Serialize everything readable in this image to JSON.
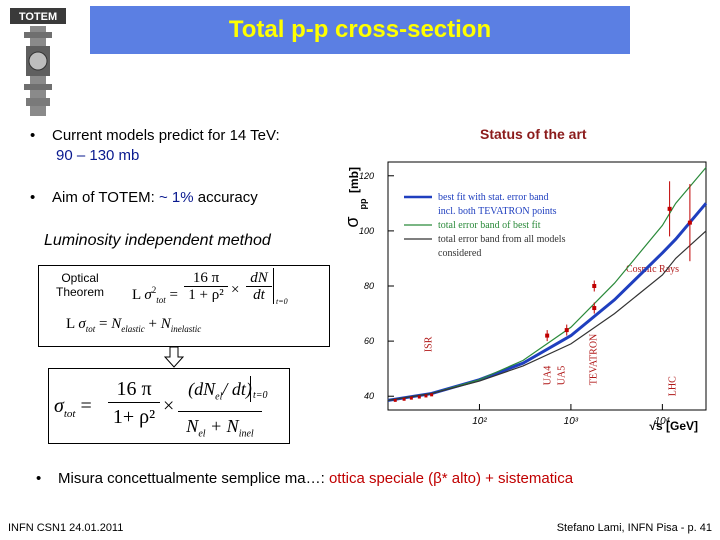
{
  "logo": {
    "text": "TOTEM",
    "icon": "totem-logo-icon"
  },
  "title": "Total p-p cross-section",
  "bullets": [
    {
      "line1": "Current models predict for 14 TeV:",
      "line2": "90 – 130 mb"
    },
    {
      "prefix": "Aim of TOTEM: ",
      "highlight": "~ 1%",
      "suffix": " accuracy"
    }
  ],
  "status_label": "Status of the art",
  "luminosity_label": "Luminosity independent method",
  "optical_theorem_label": {
    "line1": "Optical",
    "line2": "Theorem"
  },
  "formulas": {
    "L": "L",
    "sigma_tot": "σ",
    "sub_tot": "tot",
    "sixteen_pi": "16 π",
    "one_plus_rho": "1 + ρ²",
    "times": "×",
    "dNdt": "dN",
    "dt": "dt",
    "t0": "t=0",
    "elastic": "N",
    "sub_elastic": "elastic",
    "plus": "+",
    "inelastic": "N",
    "sub_inelastic": "inelastic",
    "equals": "=",
    "big_sixteen_pi": "16 π",
    "big_one_plus_rho": "1+ ρ²",
    "big_dNel": "(dN",
    "big_dNel_sub": "el",
    "big_dt": "/ dt)",
    "big_t0": "t=0",
    "big_Nel": "N",
    "big_Nel_sub": "el",
    "big_plus": "+ N",
    "big_Ninel_sub": "inel"
  },
  "bottom_bullet": {
    "prefix": "Misura concettualmente semplice ma…: ",
    "highlight": "ottica speciale (β* alto) + sistematica"
  },
  "footer_left": "INFN CSN1  24.01.2011",
  "footer_right": "Stefano Lami, INFN Pisa  - p. 41",
  "chart_data": {
    "type": "line",
    "ylabel": "σ",
    "ylabel_sub": "pp",
    "ylabel_unit": "[mb]",
    "xlabel": "√s [GeV]",
    "x_log": true,
    "xlim": [
      10,
      30000
    ],
    "ylim": [
      35,
      125
    ],
    "y_ticks": [
      40,
      60,
      80,
      100,
      120
    ],
    "x_ticks": [
      {
        "v": 100,
        "label": "10²"
      },
      {
        "v": 1000,
        "label": "10³"
      },
      {
        "v": 10000,
        "label": "10⁴"
      }
    ],
    "legend": [
      {
        "label": "best fit with stat. error band",
        "color": "#1f3fbf"
      },
      {
        "label": "incl. both TEVATRON points",
        "color": "#1f3fbf"
      },
      {
        "label": "total error band of best fit",
        "color": "#2a8a3a"
      },
      {
        "label": "total error band from all models",
        "color": "#333333"
      },
      {
        "label": "considered",
        "color": "#333333"
      }
    ],
    "region_labels": [
      "ISR",
      "UA4",
      "UA5",
      "TEVATRON",
      "LHC",
      "Cosmic Rays"
    ],
    "series": [
      {
        "x": [
          10,
          30,
          100,
          300,
          1000,
          3000,
          10000,
          14000,
          30000
        ],
        "y": [
          38.5,
          41,
          46,
          52,
          62,
          75,
          92,
          97,
          110
        ],
        "color": "#1f3fbf"
      },
      {
        "x": [
          10,
          30,
          100,
          300,
          1000,
          3000,
          10000,
          14000,
          30000
        ],
        "y": [
          38.5,
          41,
          46,
          53,
          65,
          81,
          102,
          110,
          123
        ],
        "color": "#2a8a3a"
      },
      {
        "x": [
          10,
          30,
          100,
          300,
          1000,
          3000,
          10000,
          14000,
          30000
        ],
        "y": [
          38.5,
          41,
          45.5,
          51,
          59,
          70,
          84,
          90,
          100
        ],
        "color": "#333333"
      }
    ],
    "points": [
      {
        "x": 550,
        "y": 62,
        "e": 2
      },
      {
        "x": 900,
        "y": 64,
        "e": 2
      },
      {
        "x": 1800,
        "y": 72,
        "e": 2
      },
      {
        "x": 1800,
        "y": 80,
        "e": 2
      },
      {
        "x": 12000,
        "y": 108,
        "e": 10
      },
      {
        "x": 20000,
        "y": 103,
        "e": 14
      }
    ]
  }
}
